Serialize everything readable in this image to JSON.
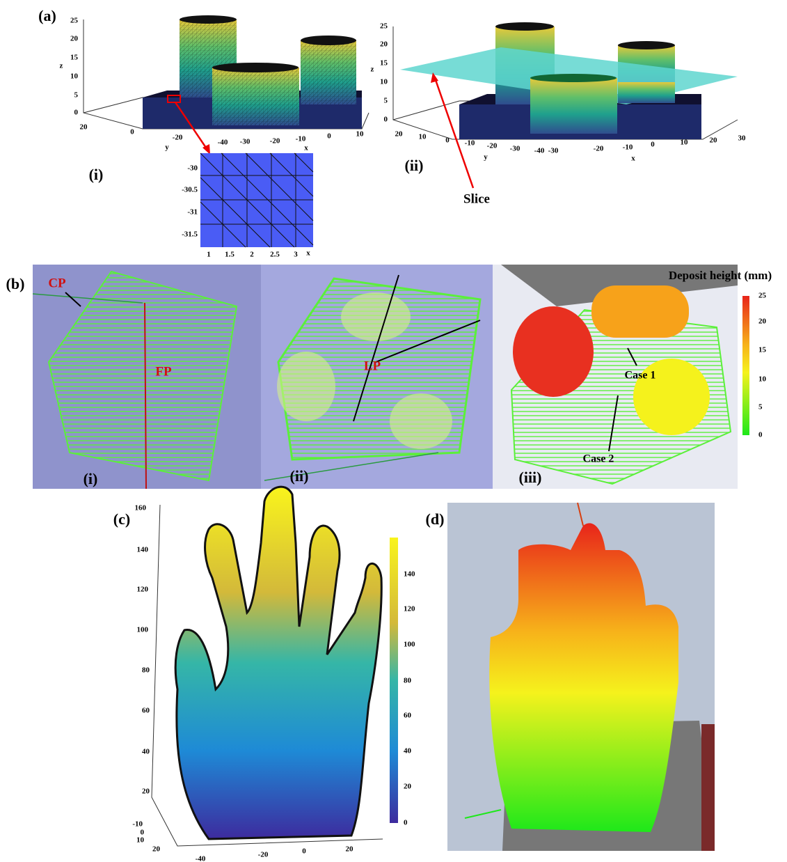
{
  "panel_a": {
    "label": "(a)",
    "left_plot": {
      "z_label": "z",
      "y_label": "y",
      "x_label": "x",
      "z_ticks": [
        "0",
        "5",
        "10",
        "15",
        "20",
        "25"
      ],
      "y_ticks": [
        "20",
        "0",
        "-20"
      ],
      "x_ticks": [
        "-40",
        "-30",
        "-20",
        "-10",
        "0",
        "10"
      ]
    },
    "inset": {
      "label": "(i)",
      "x_label": "x",
      "y_ticks": [
        "-30",
        "-30.5",
        "-31",
        "-31.5"
      ],
      "x_ticks": [
        "1",
        "1.5",
        "2",
        "2.5",
        "3"
      ]
    },
    "right_plot": {
      "label": "(ii)",
      "annotation": "Slice",
      "z_label": "z",
      "y_label": "y",
      "x_label": "x",
      "z_ticks": [
        "0",
        "5",
        "10",
        "15",
        "20",
        "25"
      ],
      "y_ticks": [
        "20",
        "10",
        "0",
        "-10",
        "-20",
        "-30",
        "-40"
      ],
      "x_ticks": [
        "-30",
        "-20",
        "-10",
        "0",
        "10",
        "20",
        "30"
      ]
    }
  },
  "panel_b": {
    "label": "(b)",
    "sub_labels": [
      "(i)",
      "(ii)",
      "(iii)"
    ],
    "annotations": {
      "cp": "CP",
      "fp": "FP",
      "lp": "LP",
      "case1": "Case 1",
      "case2": "Case 2"
    },
    "colorbar": {
      "title": "Deposit height (mm)",
      "ticks": [
        "25",
        "20",
        "15",
        "10",
        "5",
        "0"
      ]
    }
  },
  "panel_c": {
    "label": "(c)",
    "z_ticks": [
      "160",
      "140",
      "120",
      "100",
      "80",
      "60",
      "40",
      "20"
    ],
    "y_ticks": [
      "-10",
      "0",
      "10",
      "20"
    ],
    "x_ticks": [
      "-40",
      "-20",
      "0",
      "20"
    ],
    "colorbar_ticks": [
      "140",
      "120",
      "100",
      "80",
      "60",
      "40",
      "20",
      "0"
    ]
  },
  "panel_d": {
    "label": "(d)"
  }
}
